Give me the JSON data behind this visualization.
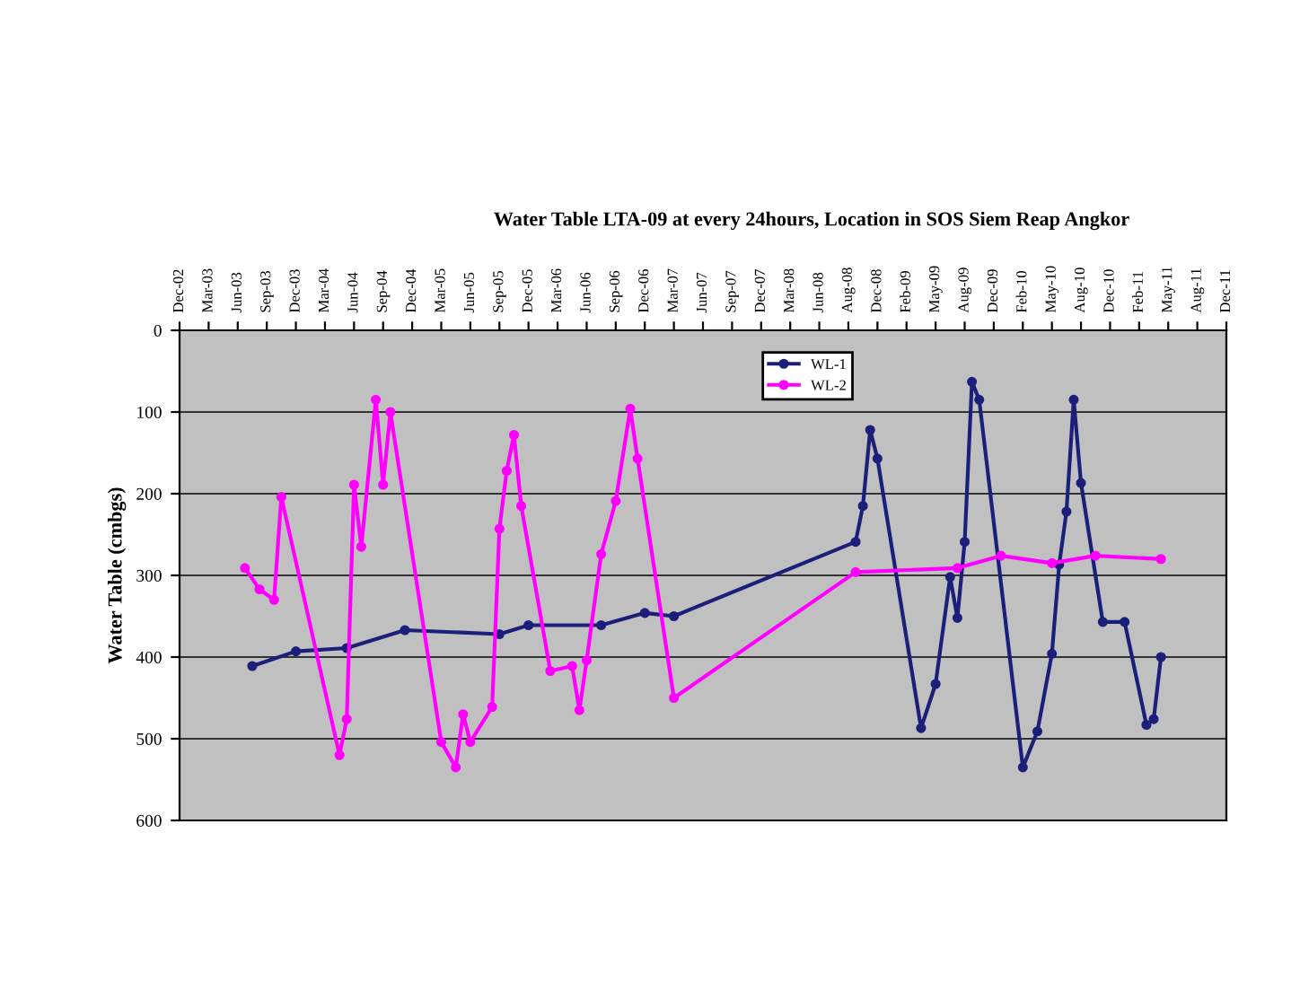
{
  "chart_data": {
    "type": "line",
    "title": "Water Table LTA-09 at every 24hours, Location in SOS Siem Reap Angkor",
    "ylabel": "Water Table (cmbgs)",
    "categories": [
      "Dec-02",
      null,
      null,
      null,
      "Mar-03",
      null,
      null,
      null,
      "Jun-03",
      null,
      null,
      null,
      "Sep-03",
      null,
      null,
      null,
      "Dec-03",
      null,
      null,
      null,
      "Mar-04",
      null,
      null,
      null,
      "Jun-04",
      null,
      null,
      null,
      "Sep-04",
      null,
      null,
      null,
      "Dec-04",
      null,
      null,
      null,
      "Mar-05",
      null,
      null,
      null,
      "Jun-05",
      null,
      null,
      null,
      "Sep-05",
      null,
      null,
      null,
      "Dec-05",
      null,
      null,
      null,
      "Mar-06",
      null,
      null,
      null,
      "Jun-06",
      null,
      null,
      null,
      "Sep-06",
      null,
      null,
      null,
      "Dec-06",
      null,
      null,
      null,
      "Mar-07",
      null,
      null,
      null,
      "Jun-07",
      null,
      null,
      null,
      "Sep-07",
      null,
      null,
      null,
      "Dec-07",
      null,
      null,
      null,
      "Mar-08",
      null,
      null,
      null,
      "Jun-08",
      null,
      null,
      null,
      "Aug-08",
      null,
      null,
      null,
      "Dec-08",
      null,
      null,
      null,
      "Feb-09",
      null,
      null,
      null,
      "May-09",
      null,
      null,
      null,
      "Aug-09",
      null,
      null,
      null,
      "Dec-09",
      null,
      null,
      null,
      "Feb-10",
      null,
      null,
      null,
      "May-10",
      null,
      null,
      null,
      "Aug-10",
      null,
      null,
      null,
      "Dec-10",
      null,
      null,
      null,
      "Feb-11",
      null,
      null,
      null,
      "May-11",
      null,
      null,
      null,
      "Aug-11",
      null,
      null,
      null,
      "Dec-11"
    ],
    "ylim": [
      600,
      0
    ],
    "yticks": [
      0,
      100,
      200,
      300,
      400,
      500,
      600
    ],
    "grid": "y",
    "legend": "top",
    "marker": "circle",
    "line_style": "solid",
    "series": [
      {
        "name": "WL-1",
        "color": "#1c1f7a",
        "values": [
          null,
          null,
          null,
          null,
          null,
          null,
          null,
          null,
          null,
          null,
          411,
          null,
          null,
          null,
          null,
          null,
          393,
          null,
          null,
          null,
          null,
          null,
          null,
          389,
          null,
          null,
          null,
          null,
          null,
          null,
          null,
          367,
          null,
          null,
          null,
          null,
          null,
          null,
          null,
          null,
          null,
          null,
          null,
          null,
          372,
          null,
          null,
          null,
          361,
          null,
          null,
          null,
          null,
          null,
          null,
          null,
          null,
          null,
          361,
          null,
          null,
          null,
          null,
          null,
          346,
          null,
          null,
          null,
          350,
          null,
          null,
          null,
          null,
          null,
          null,
          null,
          null,
          null,
          null,
          null,
          null,
          null,
          null,
          null,
          null,
          null,
          null,
          null,
          null,
          null,
          null,
          null,
          null,
          259,
          215,
          122,
          157,
          null,
          null,
          null,
          null,
          null,
          487,
          null,
          433,
          null,
          302,
          352,
          259,
          63,
          85,
          null,
          null,
          null,
          null,
          null,
          535,
          null,
          491,
          null,
          396,
          287,
          222,
          85,
          187,
          null,
          null,
          357,
          null,
          null,
          357,
          null,
          null,
          483,
          476,
          400,
          null,
          null,
          null,
          null,
          null,
          null,
          null,
          null,
          null
        ]
      },
      {
        "name": "WL-2",
        "color": "#ff00ff",
        "values": [
          null,
          null,
          null,
          null,
          null,
          null,
          null,
          null,
          null,
          291,
          null,
          317,
          null,
          330,
          204,
          null,
          null,
          null,
          null,
          null,
          null,
          null,
          520,
          476,
          189,
          265,
          null,
          85,
          189,
          100,
          null,
          null,
          null,
          null,
          null,
          null,
          504,
          null,
          535,
          470,
          504,
          null,
          null,
          461,
          243,
          172,
          128,
          215,
          null,
          null,
          null,
          417,
          null,
          null,
          411,
          465,
          404,
          null,
          274,
          null,
          209,
          null,
          96,
          157,
          null,
          null,
          null,
          null,
          450,
          null,
          null,
          null,
          null,
          null,
          null,
          null,
          null,
          null,
          null,
          null,
          null,
          null,
          null,
          null,
          null,
          null,
          null,
          null,
          null,
          null,
          null,
          null,
          null,
          296,
          null,
          null,
          null,
          null,
          null,
          null,
          null,
          null,
          null,
          null,
          null,
          null,
          null,
          291,
          null,
          null,
          null,
          null,
          null,
          276,
          null,
          null,
          null,
          null,
          null,
          null,
          285,
          null,
          null,
          null,
          null,
          null,
          276,
          null,
          null,
          null,
          null,
          null,
          null,
          null,
          null,
          280,
          null,
          null,
          null,
          null,
          null,
          null,
          null,
          null,
          null
        ]
      }
    ]
  }
}
